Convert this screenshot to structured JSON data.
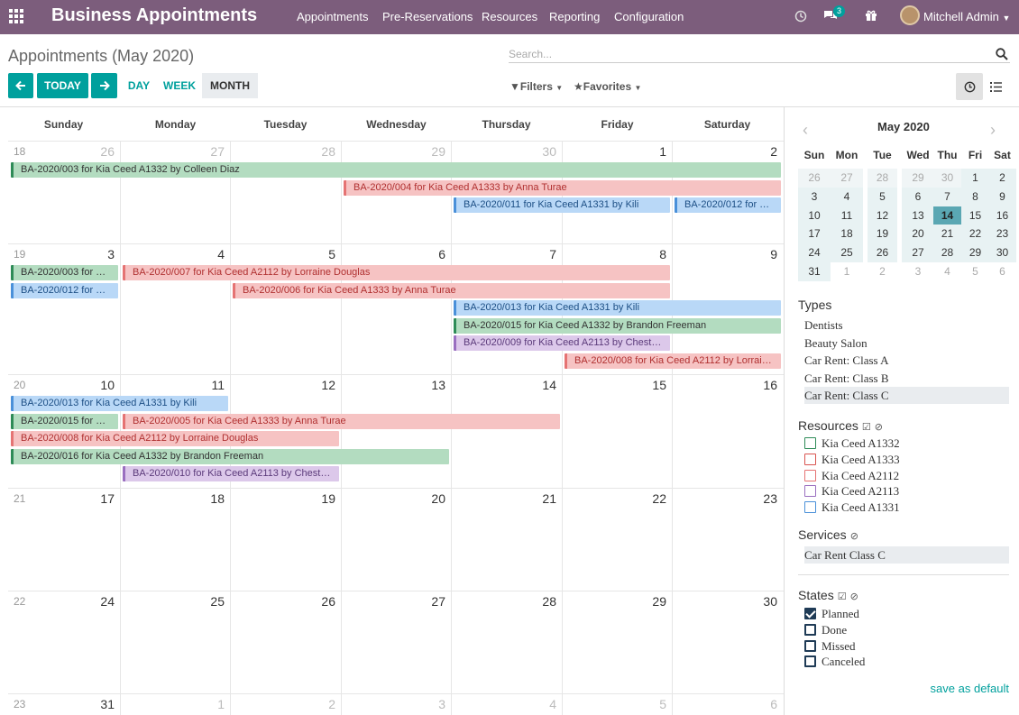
{
  "topbar": {
    "brand": "Business Appointments",
    "menus": [
      "Appointments",
      "Pre-Reservations",
      "Resources",
      "Reporting",
      "Configuration"
    ],
    "chat_badge": "3",
    "user": "Mitchell Admin"
  },
  "page_title": "Appointments (May 2020)",
  "search": {
    "placeholder": "Search..."
  },
  "nav": {
    "today": "TODAY",
    "day": "DAY",
    "week": "WEEK",
    "month": "MONTH",
    "filters": "Filters",
    "favorites": "Favorites"
  },
  "calendar": {
    "day_names": [
      "Sunday",
      "Monday",
      "Tuesday",
      "Wednesday",
      "Thursday",
      "Friday",
      "Saturday"
    ],
    "weeks": [
      {
        "num": "18",
        "days": [
          {
            "d": "26",
            "o": 1
          },
          {
            "d": "27",
            "o": 1
          },
          {
            "d": "28",
            "o": 1
          },
          {
            "d": "29",
            "o": 1
          },
          {
            "d": "30",
            "o": 1
          },
          {
            "d": "1",
            "o": 0
          },
          {
            "d": "2",
            "o": 0
          }
        ]
      },
      {
        "num": "19",
        "days": [
          {
            "d": "3",
            "o": 0
          },
          {
            "d": "4",
            "o": 0
          },
          {
            "d": "5",
            "o": 0
          },
          {
            "d": "6",
            "o": 0
          },
          {
            "d": "7",
            "o": 0
          },
          {
            "d": "8",
            "o": 0
          },
          {
            "d": "9",
            "o": 0
          }
        ]
      },
      {
        "num": "20",
        "days": [
          {
            "d": "10",
            "o": 0
          },
          {
            "d": "11",
            "o": 0
          },
          {
            "d": "12",
            "o": 0
          },
          {
            "d": "13",
            "o": 0
          },
          {
            "d": "14",
            "o": 0
          },
          {
            "d": "15",
            "o": 0
          },
          {
            "d": "16",
            "o": 0
          }
        ]
      },
      {
        "num": "21",
        "days": [
          {
            "d": "17",
            "o": 0
          },
          {
            "d": "18",
            "o": 0
          },
          {
            "d": "19",
            "o": 0
          },
          {
            "d": "20",
            "o": 0
          },
          {
            "d": "21",
            "o": 0
          },
          {
            "d": "22",
            "o": 0
          },
          {
            "d": "23",
            "o": 0
          }
        ]
      },
      {
        "num": "22",
        "days": [
          {
            "d": "24",
            "o": 0
          },
          {
            "d": "25",
            "o": 0
          },
          {
            "d": "26",
            "o": 0
          },
          {
            "d": "27",
            "o": 0
          },
          {
            "d": "28",
            "o": 0
          },
          {
            "d": "29",
            "o": 0
          },
          {
            "d": "30",
            "o": 0
          }
        ]
      },
      {
        "num": "23",
        "days": [
          {
            "d": "31",
            "o": 0
          },
          {
            "d": "1",
            "o": 1
          },
          {
            "d": "2",
            "o": 1
          },
          {
            "d": "3",
            "o": 1
          },
          {
            "d": "4",
            "o": 1
          },
          {
            "d": "5",
            "o": 1
          },
          {
            "d": "6",
            "o": 1
          }
        ]
      }
    ],
    "events": [
      {
        "label": "BA-2020/003 for Kia Ceed A1332 by Colleen Diaz",
        "color": "green",
        "week": 0,
        "start_day": 0,
        "end_day": 6,
        "row": 0
      },
      {
        "label": "BA-2020/004 for Kia Ceed A1333 by Anna Turae",
        "color": "red",
        "week": 0,
        "start_day": 3,
        "end_day": 6,
        "row": 1
      },
      {
        "label": "BA-2020/011 for Kia Ceed A1331 by Kili",
        "color": "blue",
        "week": 0,
        "start_day": 4,
        "end_day": 5,
        "row": 2
      },
      {
        "label": "BA-2020/012 for …",
        "color": "blue",
        "week": 0,
        "start_day": 6,
        "end_day": 6,
        "row": 2
      },
      {
        "label": "BA-2020/003 for …",
        "color": "green",
        "week": 1,
        "start_day": 0,
        "end_day": 0,
        "row": 0
      },
      {
        "label": "BA-2020/007 for Kia Ceed A2112 by Lorraine Douglas",
        "color": "red",
        "week": 1,
        "start_day": 1,
        "end_day": 5,
        "row": 0
      },
      {
        "label": "BA-2020/012 for …",
        "color": "blue",
        "week": 1,
        "start_day": 0,
        "end_day": 0,
        "row": 1
      },
      {
        "label": "BA-2020/006 for Kia Ceed A1333 by Anna Turae",
        "color": "red",
        "week": 1,
        "start_day": 2,
        "end_day": 5,
        "row": 1
      },
      {
        "label": "BA-2020/013 for Kia Ceed A1331 by Kili",
        "color": "blue",
        "week": 1,
        "start_day": 4,
        "end_day": 6,
        "row": 2
      },
      {
        "label": "BA-2020/015 for Kia Ceed A1332 by Brandon Freeman",
        "color": "green",
        "week": 1,
        "start_day": 4,
        "end_day": 6,
        "row": 3
      },
      {
        "label": "BA-2020/009 for Kia Ceed A2113 by Chest…",
        "color": "purple",
        "week": 1,
        "start_day": 4,
        "end_day": 5,
        "row": 4
      },
      {
        "label": "BA-2020/008 for Kia Ceed A2112 by Lorrai…",
        "color": "red",
        "week": 1,
        "start_day": 5,
        "end_day": 6,
        "row": 5
      },
      {
        "label": "BA-2020/013 for Kia Ceed A1331 by Kili",
        "color": "blue",
        "week": 2,
        "start_day": 0,
        "end_day": 1,
        "row": 0
      },
      {
        "label": "BA-2020/015 for …",
        "color": "green",
        "week": 2,
        "start_day": 0,
        "end_day": 0,
        "row": 1
      },
      {
        "label": "BA-2020/005 for Kia Ceed A1333 by Anna Turae",
        "color": "red",
        "week": 2,
        "start_day": 1,
        "end_day": 4,
        "row": 1
      },
      {
        "label": "BA-2020/008 for Kia Ceed A2112 by Lorraine Douglas",
        "color": "red",
        "week": 2,
        "start_day": 0,
        "end_day": 2,
        "row": 2
      },
      {
        "label": "BA-2020/016 for Kia Ceed A1332 by Brandon Freeman",
        "color": "green",
        "week": 2,
        "start_day": 0,
        "end_day": 3,
        "row": 3
      },
      {
        "label": "BA-2020/010 for Kia Ceed A2113 by Chest…",
        "color": "purple",
        "week": 2,
        "start_day": 1,
        "end_day": 2,
        "row": 4
      }
    ]
  },
  "mini_calendar": {
    "title": "May 2020",
    "day_heads": [
      "Sun",
      "Mon",
      "Tue",
      "Wed",
      "Thu",
      "Fri",
      "Sat"
    ],
    "weeks": [
      [
        {
          "d": "26",
          "t": "prev"
        },
        {
          "d": "27",
          "t": "prev"
        },
        {
          "d": "28",
          "t": "prev"
        },
        {
          "d": "29",
          "t": "prev"
        },
        {
          "d": "30",
          "t": "prev"
        },
        {
          "d": "1",
          "t": "cur"
        },
        {
          "d": "2",
          "t": "cur"
        }
      ],
      [
        {
          "d": "3",
          "t": "cur"
        },
        {
          "d": "4",
          "t": "cur"
        },
        {
          "d": "5",
          "t": "cur"
        },
        {
          "d": "6",
          "t": "cur"
        },
        {
          "d": "7",
          "t": "cur"
        },
        {
          "d": "8",
          "t": "cur"
        },
        {
          "d": "9",
          "t": "cur"
        }
      ],
      [
        {
          "d": "10",
          "t": "cur"
        },
        {
          "d": "11",
          "t": "cur"
        },
        {
          "d": "12",
          "t": "cur"
        },
        {
          "d": "13",
          "t": "cur"
        },
        {
          "d": "14",
          "t": "today"
        },
        {
          "d": "15",
          "t": "cur"
        },
        {
          "d": "16",
          "t": "cur"
        }
      ],
      [
        {
          "d": "17",
          "t": "cur"
        },
        {
          "d": "18",
          "t": "cur"
        },
        {
          "d": "19",
          "t": "cur"
        },
        {
          "d": "20",
          "t": "cur"
        },
        {
          "d": "21",
          "t": "cur"
        },
        {
          "d": "22",
          "t": "cur"
        },
        {
          "d": "23",
          "t": "cur"
        }
      ],
      [
        {
          "d": "24",
          "t": "cur"
        },
        {
          "d": "25",
          "t": "cur"
        },
        {
          "d": "26",
          "t": "cur"
        },
        {
          "d": "27",
          "t": "cur"
        },
        {
          "d": "28",
          "t": "cur"
        },
        {
          "d": "29",
          "t": "cur"
        },
        {
          "d": "30",
          "t": "cur"
        }
      ],
      [
        {
          "d": "31",
          "t": "cur"
        },
        {
          "d": "1",
          "t": "next"
        },
        {
          "d": "2",
          "t": "next"
        },
        {
          "d": "3",
          "t": "next"
        },
        {
          "d": "4",
          "t": "next"
        },
        {
          "d": "5",
          "t": "next"
        },
        {
          "d": "6",
          "t": "next"
        }
      ]
    ]
  },
  "types": {
    "title": "Types",
    "items": [
      "Dentists",
      "Beauty Salon",
      "Car Rent: Class A",
      "Car Rent: Class B",
      "Car Rent: Class C"
    ],
    "selected": 4
  },
  "resources": {
    "title": "Resources",
    "items": [
      {
        "label": "Kia Ceed A1332",
        "color": "#2e8b57"
      },
      {
        "label": "Kia Ceed A1333",
        "color": "#d9534f"
      },
      {
        "label": "Kia Ceed A2112",
        "color": "#e57373"
      },
      {
        "label": "Kia Ceed A2113",
        "color": "#9a6fc0"
      },
      {
        "label": "Kia Ceed A1331",
        "color": "#4a90d9"
      }
    ]
  },
  "services": {
    "title": "Services",
    "items": [
      "Car Rent Class C"
    ]
  },
  "states": {
    "title": "States",
    "items": [
      {
        "label": "Planned",
        "checked": true
      },
      {
        "label": "Done",
        "checked": false
      },
      {
        "label": "Missed",
        "checked": false
      },
      {
        "label": "Canceled",
        "checked": false
      }
    ]
  },
  "save_default": "save as default",
  "colors": {
    "brand": "#7c5d7c",
    "accent": "#00a09d"
  }
}
